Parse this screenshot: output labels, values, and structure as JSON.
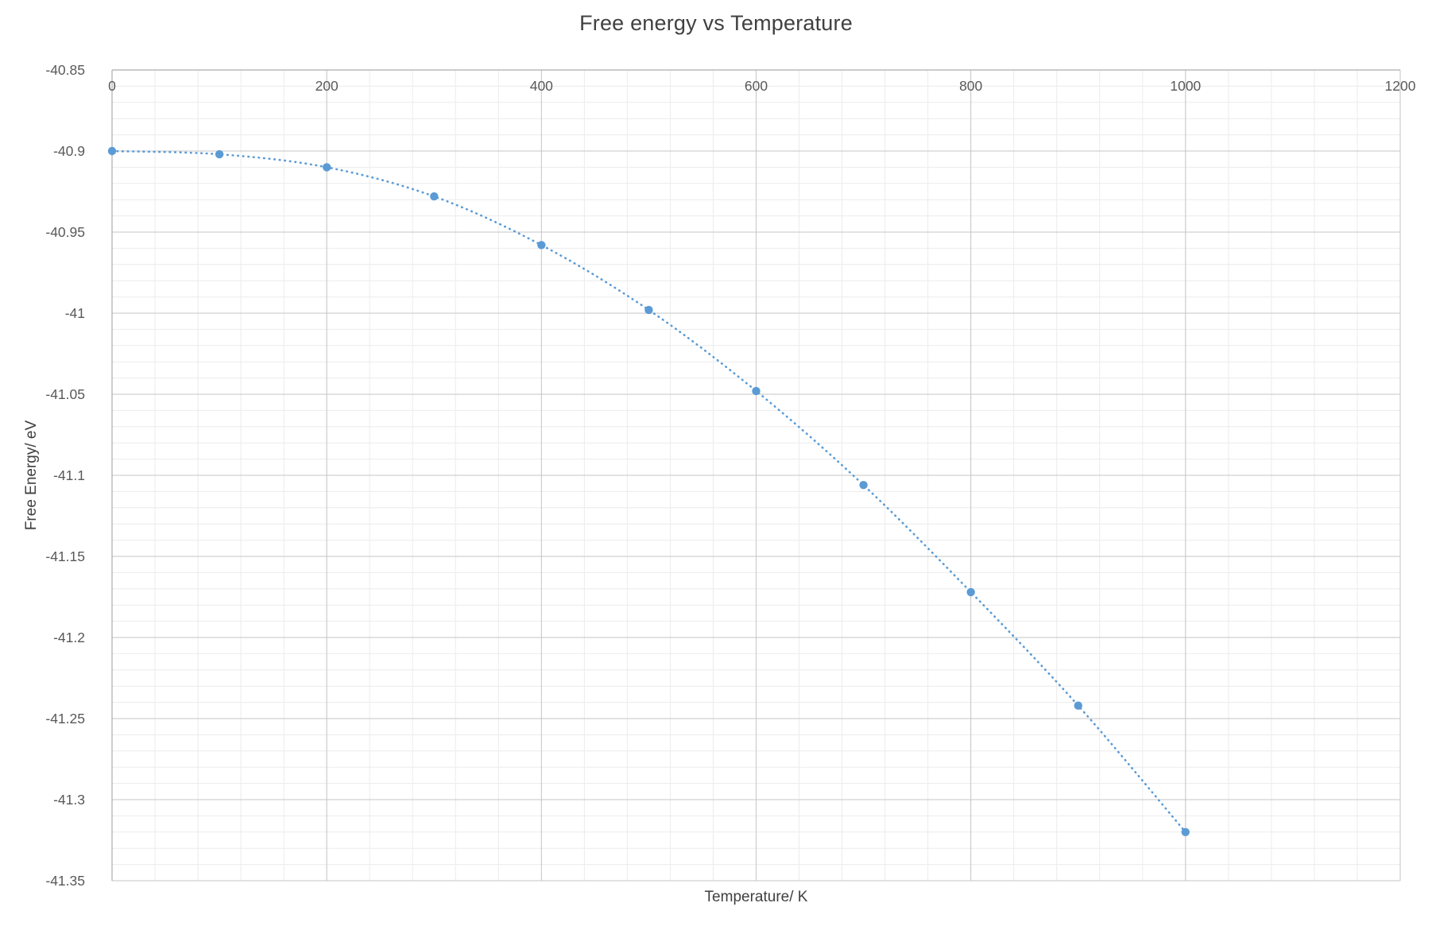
{
  "chart_data": {
    "type": "scatter",
    "title": "Free energy vs Temperature",
    "xlabel": "Temperature/ K",
    "ylabel": "Free Energy/ eV",
    "x": [
      0,
      100,
      200,
      300,
      400,
      500,
      600,
      700,
      800,
      900,
      1000
    ],
    "y": [
      -40.9,
      -40.902,
      -40.91,
      -40.928,
      -40.958,
      -40.998,
      -41.048,
      -41.106,
      -41.172,
      -41.242,
      -41.32
    ],
    "trendline": "dotted smooth curve through points",
    "xlim": [
      0,
      1200
    ],
    "ylim": [
      -41.35,
      -40.85
    ],
    "x_major": 200,
    "x_minor": 40,
    "y_major": 0.05,
    "y_minor": 0.01,
    "x_ticks": [
      "0",
      "200",
      "400",
      "600",
      "800",
      "1000",
      "1200"
    ],
    "y_ticks": [
      "-40.85",
      "-40.9",
      "-40.95",
      "-41",
      "-41.05",
      "-41.1",
      "-41.15",
      "-41.2",
      "-41.25",
      "-41.3",
      "-41.35"
    ],
    "grid": "major and minor, both axes",
    "legend": "none",
    "colors": {
      "point": "#5B9BD5",
      "line": "#5B9BD5",
      "grid_minor": "#ECECEC",
      "grid_major": "#C6C6C6",
      "axis_line": "#ACACAC",
      "tick_text": "#595959",
      "title_text": "#404040"
    }
  }
}
